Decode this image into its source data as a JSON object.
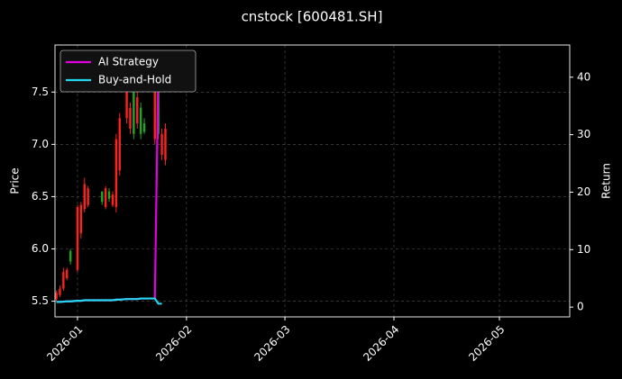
{
  "chart_data": {
    "type": "candlestick",
    "title": "cnstock [600481.SH]",
    "ylabel": "Price",
    "y2label": "Return",
    "x": [
      -6,
      -5,
      -4,
      -3,
      -2,
      0,
      1,
      2,
      3,
      7,
      8,
      9,
      10,
      11,
      12,
      14,
      15,
      16,
      17,
      18,
      19,
      22,
      23,
      24,
      25
    ],
    "xlim": [
      -6.4,
      140
    ],
    "xticks": [
      {
        "value": 0,
        "label": "2026-01"
      },
      {
        "value": 31,
        "label": "2026-02"
      },
      {
        "value": 59,
        "label": "2026-03"
      },
      {
        "value": 90,
        "label": "2026-04"
      },
      {
        "value": 120,
        "label": "2026-05"
      }
    ],
    "ylim": [
      5.35,
      7.95
    ],
    "yticks": [
      5.5,
      {
        "value": 6,
        "label": "6.0"
      },
      6.5,
      {
        "value": 7,
        "label": "7.0"
      },
      7.5
    ],
    "y2lim": [
      -1.7,
      45.6
    ],
    "y2ticks": [
      0,
      10,
      20,
      30,
      40
    ],
    "up_color": "#ff2020",
    "down_color": "#1fa81f",
    "open": [
      5.52,
      5.56,
      5.62,
      5.72,
      5.98,
      5.8,
      6.15,
      6.38,
      6.42,
      6.55,
      6.4,
      6.55,
      6.42,
      6.4,
      6.75,
      7.25,
      7.15,
      7.5,
      7.2,
      7.35,
      7.2,
      7.05,
      7.8,
      6.9,
      6.85
    ],
    "high": [
      5.6,
      5.65,
      5.82,
      5.82,
      6.0,
      6.42,
      6.45,
      6.68,
      6.6,
      6.55,
      6.6,
      6.58,
      6.55,
      7.1,
      7.3,
      7.6,
      7.4,
      7.55,
      7.5,
      7.4,
      7.25,
      7.75,
      7.9,
      7.15,
      7.2
    ],
    "low": [
      5.5,
      5.54,
      5.6,
      5.7,
      5.85,
      5.78,
      6.1,
      6.35,
      6.4,
      6.42,
      6.38,
      6.45,
      6.4,
      6.35,
      6.7,
      7.2,
      7.1,
      7.05,
      7.15,
      7.05,
      7.1,
      7.0,
      7.05,
      6.85,
      6.8
    ],
    "close": [
      5.58,
      5.62,
      5.78,
      5.8,
      5.88,
      6.4,
      6.42,
      6.62,
      6.58,
      6.45,
      6.58,
      6.48,
      6.52,
      7.05,
      7.25,
      7.5,
      7.35,
      7.1,
      7.45,
      7.1,
      7.12,
      7.7,
      7.1,
      7.1,
      7.15
    ],
    "series": [
      {
        "name": "AI Strategy",
        "color": "#e000e0",
        "axis": "y2",
        "values": [
          0.9,
          0.9,
          0.95,
          1,
          1,
          1.1,
          1.1,
          1.2,
          1.2,
          1.2,
          1.2,
          1.2,
          1.2,
          1.3,
          1.3,
          1.4,
          1.4,
          1.4,
          1.4,
          1.5,
          1.5,
          1.5,
          41.5,
          null,
          null
        ]
      },
      {
        "name": "Buy-and-Hold",
        "color": "#22d8f0",
        "axis": "y2",
        "values": [
          0.9,
          0.9,
          0.95,
          1,
          1,
          1.1,
          1.1,
          1.2,
          1.2,
          1.2,
          1.2,
          1.2,
          1.2,
          1.3,
          1.3,
          1.4,
          1.4,
          1.4,
          1.4,
          1.5,
          1.5,
          1.5,
          0.6,
          0.6,
          null
        ]
      }
    ],
    "grid": true,
    "legend": "upper left"
  }
}
